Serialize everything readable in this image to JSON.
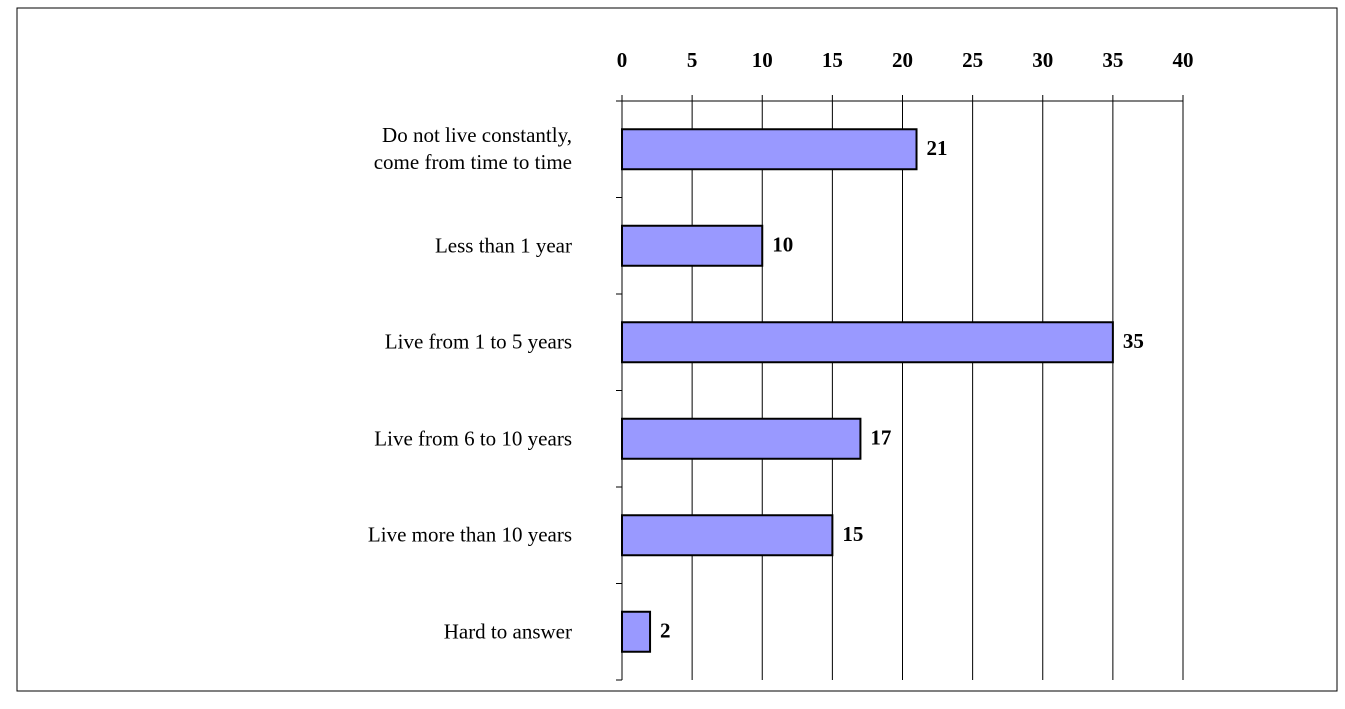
{
  "chart_data": {
    "type": "bar",
    "orientation": "horizontal",
    "categories": [
      "Do not live constantly,\ncome from time to time",
      "Less than 1 year",
      "Live from 1 to 5 years",
      "Live from 6 to 10 years",
      "Live more than 10 years",
      "Hard to answer"
    ],
    "values": [
      21,
      10,
      35,
      17,
      15,
      2
    ],
    "color": "#9999ff",
    "xlim": [
      0,
      40
    ],
    "xticks": [
      0,
      5,
      10,
      15,
      20,
      25,
      30,
      35,
      40
    ],
    "grid": true
  }
}
